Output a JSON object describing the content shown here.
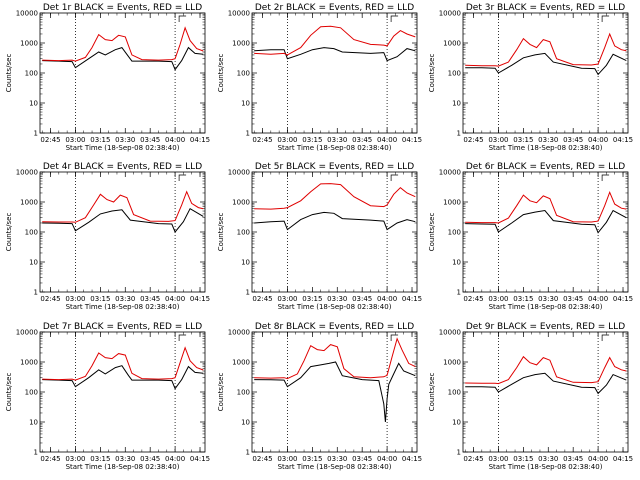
{
  "figure": {
    "xlabel": "Start Time (18-Sep-08 02:38:40)",
    "ylabel": "Counts/sec",
    "xtick_labels": [
      "02:45",
      "03:00",
      "03:15",
      "03:30",
      "03:45",
      "04:00",
      "04:15"
    ],
    "ytick_labels": [
      "1",
      "10",
      "100",
      "1000",
      "10000"
    ]
  },
  "chart_data": [
    {
      "type": "line",
      "title": "Det 1r BLACK = Events, RED = LLD",
      "xlabel": "Start Time (18-Sep-08 02:38:40)",
      "ylabel": "Counts/sec",
      "ylim": [
        1,
        10000
      ],
      "y_scale": "log",
      "x_ticks": [
        "02:45",
        "03:00",
        "03:15",
        "03:30",
        "03:45",
        "04:00",
        "04:15"
      ],
      "vertical_dotted_lines": [
        "03:00",
        "04:00"
      ],
      "series": [
        {
          "name": "Events",
          "color": "#000000",
          "x": [
            "02:40",
            "02:50",
            "02:58",
            "03:00",
            "03:08",
            "03:14",
            "03:18",
            "03:24",
            "03:28",
            "03:32",
            "03:34",
            "03:50",
            "03:58",
            "04:00",
            "04:04",
            "04:08",
            "04:12",
            "04:17"
          ],
          "y": [
            260,
            250,
            240,
            150,
            300,
            500,
            400,
            600,
            700,
            350,
            250,
            250,
            240,
            130,
            260,
            700,
            450,
            420
          ]
        },
        {
          "name": "LLD",
          "color": "#e00000",
          "x": [
            "02:40",
            "02:50",
            "02:58",
            "03:00",
            "03:06",
            "03:10",
            "03:14",
            "03:18",
            "03:22",
            "03:26",
            "03:30",
            "03:34",
            "03:40",
            "03:50",
            "03:58",
            "04:00",
            "04:03",
            "04:06",
            "04:09",
            "04:13",
            "04:17"
          ],
          "y": [
            270,
            260,
            270,
            250,
            330,
            700,
            1900,
            1300,
            1200,
            1800,
            1600,
            400,
            280,
            270,
            280,
            300,
            900,
            3200,
            1200,
            650,
            540
          ]
        }
      ]
    },
    {
      "type": "line",
      "title": "Det 2r BLACK = Events, RED = LLD",
      "xlabel": "Start Time (18-Sep-08 02:38:40)",
      "ylabel": "Counts/sec",
      "ylim": [
        1,
        10000
      ],
      "y_scale": "log",
      "x_ticks": [
        "02:45",
        "03:00",
        "03:15",
        "03:30",
        "03:45",
        "04:00",
        "04:15"
      ],
      "vertical_dotted_lines": [
        "03:00",
        "04:00"
      ],
      "series": [
        {
          "name": "Events",
          "color": "#000000",
          "x": [
            "02:40",
            "02:50",
            "02:58",
            "03:00",
            "03:08",
            "03:15",
            "03:22",
            "03:28",
            "03:33",
            "03:50",
            "03:58",
            "04:00",
            "04:06",
            "04:12",
            "04:17"
          ],
          "y": [
            550,
            600,
            600,
            300,
            420,
            600,
            700,
            650,
            500,
            450,
            480,
            260,
            350,
            650,
            550
          ]
        },
        {
          "name": "LLD",
          "color": "#e00000",
          "x": [
            "02:40",
            "02:50",
            "02:58",
            "03:00",
            "03:08",
            "03:14",
            "03:20",
            "03:26",
            "03:32",
            "03:40",
            "03:50",
            "03:58",
            "04:00",
            "04:04",
            "04:08",
            "04:12",
            "04:17"
          ],
          "y": [
            450,
            420,
            450,
            400,
            700,
            1800,
            3500,
            3600,
            3200,
            1300,
            900,
            850,
            800,
            1700,
            2600,
            2000,
            1600
          ]
        }
      ]
    },
    {
      "type": "line",
      "title": "Det 3r BLACK = Events, RED = LLD",
      "xlabel": "Start Time (18-Sep-08 02:38:40)",
      "ylabel": "Counts/sec",
      "ylim": [
        1,
        10000
      ],
      "y_scale": "log",
      "x_ticks": [
        "02:45",
        "03:00",
        "03:15",
        "03:30",
        "03:45",
        "04:00",
        "04:15"
      ],
      "vertical_dotted_lines": [
        "03:00",
        "04:00"
      ],
      "series": [
        {
          "name": "Events",
          "color": "#000000",
          "x": [
            "02:40",
            "02:50",
            "02:58",
            "03:00",
            "03:08",
            "03:15",
            "03:22",
            "03:28",
            "03:33",
            "03:50",
            "03:58",
            "04:00",
            "04:05",
            "04:09",
            "04:17"
          ],
          "y": [
            150,
            150,
            145,
            100,
            180,
            320,
            400,
            450,
            230,
            145,
            140,
            90,
            180,
            420,
            260
          ]
        },
        {
          "name": "LLD",
          "color": "#e00000",
          "x": [
            "02:40",
            "02:50",
            "02:58",
            "03:00",
            "03:06",
            "03:11",
            "03:15",
            "03:19",
            "03:23",
            "03:27",
            "03:31",
            "03:35",
            "03:45",
            "03:56",
            "04:00",
            "04:04",
            "04:07",
            "04:10",
            "04:14",
            "04:17"
          ],
          "y": [
            180,
            175,
            175,
            170,
            230,
            600,
            1400,
            900,
            700,
            1300,
            1100,
            300,
            190,
            185,
            200,
            700,
            2000,
            800,
            600,
            550
          ]
        }
      ]
    },
    {
      "type": "line",
      "title": "Det 4r BLACK = Events, RED = LLD",
      "xlabel": "Start Time (18-Sep-08 02:38:40)",
      "ylabel": "Counts/sec",
      "ylim": [
        1,
        10000
      ],
      "y_scale": "log",
      "x_ticks": [
        "02:45",
        "03:00",
        "03:15",
        "03:30",
        "03:45",
        "04:00",
        "04:15"
      ],
      "vertical_dotted_lines": [
        "03:00",
        "04:00"
      ],
      "series": [
        {
          "name": "Events",
          "color": "#000000",
          "x": [
            "02:40",
            "02:50",
            "02:58",
            "03:00",
            "03:08",
            "03:15",
            "03:22",
            "03:28",
            "03:33",
            "03:50",
            "03:58",
            "04:00",
            "04:05",
            "04:09",
            "04:17"
          ],
          "y": [
            200,
            195,
            190,
            110,
            210,
            400,
            500,
            550,
            250,
            190,
            185,
            100,
            220,
            600,
            330
          ]
        },
        {
          "name": "LLD",
          "color": "#e00000",
          "x": [
            "02:40",
            "02:50",
            "02:58",
            "03:00",
            "03:06",
            "03:11",
            "03:15",
            "03:19",
            "03:23",
            "03:27",
            "03:31",
            "03:35",
            "03:45",
            "03:56",
            "04:00",
            "04:04",
            "04:07",
            "04:10",
            "04:14",
            "04:17"
          ],
          "y": [
            220,
            215,
            215,
            210,
            300,
            800,
            1800,
            1200,
            1000,
            1700,
            1400,
            380,
            230,
            225,
            240,
            800,
            2200,
            900,
            650,
            600
          ]
        }
      ]
    },
    {
      "type": "line",
      "title": "Det 5r BLACK = Events, RED = LLD",
      "xlabel": "Start Time (18-Sep-08 02:38:40)",
      "ylabel": "Counts/sec",
      "ylim": [
        1,
        10000
      ],
      "y_scale": "log",
      "x_ticks": [
        "02:45",
        "03:00",
        "03:15",
        "03:30",
        "03:45",
        "04:00",
        "04:15"
      ],
      "vertical_dotted_lines": [
        "03:00",
        "04:00"
      ],
      "series": [
        {
          "name": "Events",
          "color": "#000000",
          "x": [
            "02:40",
            "02:50",
            "02:58",
            "03:00",
            "03:08",
            "03:15",
            "03:22",
            "03:28",
            "03:33",
            "03:50",
            "03:58",
            "04:00",
            "04:06",
            "04:12",
            "04:17"
          ],
          "y": [
            200,
            220,
            230,
            120,
            260,
            380,
            450,
            420,
            280,
            250,
            230,
            120,
            200,
            260,
            220
          ]
        },
        {
          "name": "LLD",
          "color": "#e00000",
          "x": [
            "02:40",
            "02:50",
            "02:58",
            "03:00",
            "03:08",
            "03:14",
            "03:20",
            "03:26",
            "03:32",
            "03:40",
            "03:50",
            "03:58",
            "04:00",
            "04:04",
            "04:08",
            "04:12",
            "04:17"
          ],
          "y": [
            600,
            580,
            620,
            650,
            1100,
            2200,
            4000,
            4100,
            3800,
            1500,
            750,
            700,
            800,
            1800,
            3000,
            2000,
            1500
          ]
        }
      ]
    },
    {
      "type": "line",
      "title": "Det 6r BLACK = Events, RED = LLD",
      "xlabel": "Start Time (18-Sep-08 02:38:40)",
      "ylabel": "Counts/sec",
      "ylim": [
        1,
        10000
      ],
      "y_scale": "log",
      "x_ticks": [
        "02:45",
        "03:00",
        "03:15",
        "03:30",
        "03:45",
        "04:00",
        "04:15"
      ],
      "vertical_dotted_lines": [
        "03:00",
        "04:00"
      ],
      "series": [
        {
          "name": "Events",
          "color": "#000000",
          "x": [
            "02:40",
            "02:50",
            "02:58",
            "03:00",
            "03:08",
            "03:15",
            "03:22",
            "03:28",
            "03:33",
            "03:50",
            "03:58",
            "04:00",
            "04:05",
            "04:09",
            "04:17"
          ],
          "y": [
            190,
            185,
            180,
            100,
            200,
            380,
            460,
            520,
            240,
            180,
            175,
            95,
            210,
            520,
            300
          ]
        },
        {
          "name": "LLD",
          "color": "#e00000",
          "x": [
            "02:40",
            "02:50",
            "02:58",
            "03:00",
            "03:06",
            "03:11",
            "03:15",
            "03:19",
            "03:23",
            "03:27",
            "03:31",
            "03:35",
            "03:45",
            "03:56",
            "04:00",
            "04:04",
            "04:07",
            "04:10",
            "04:14",
            "04:17"
          ],
          "y": [
            210,
            205,
            205,
            200,
            290,
            750,
            1700,
            1100,
            950,
            1600,
            1300,
            360,
            220,
            215,
            230,
            750,
            2100,
            850,
            620,
            580
          ]
        }
      ]
    },
    {
      "type": "line",
      "title": "Det 7r BLACK = Events, RED = LLD",
      "xlabel": "Start Time (18-Sep-08 02:38:40)",
      "ylabel": "Counts/sec",
      "ylim": [
        1,
        10000
      ],
      "y_scale": "log",
      "x_ticks": [
        "02:45",
        "03:00",
        "03:15",
        "03:30",
        "03:45",
        "04:00",
        "04:15"
      ],
      "vertical_dotted_lines": [
        "03:00",
        "04:00"
      ],
      "series": [
        {
          "name": "Events",
          "color": "#000000",
          "x": [
            "02:40",
            "02:50",
            "02:58",
            "03:00",
            "03:08",
            "03:14",
            "03:18",
            "03:24",
            "03:28",
            "03:32",
            "03:34",
            "03:50",
            "03:58",
            "04:00",
            "04:04",
            "04:08",
            "04:12",
            "04:17"
          ],
          "y": [
            260,
            250,
            240,
            150,
            300,
            550,
            400,
            650,
            750,
            350,
            250,
            250,
            240,
            130,
            260,
            700,
            450,
            420
          ]
        },
        {
          "name": "LLD",
          "color": "#e00000",
          "x": [
            "02:40",
            "02:50",
            "02:58",
            "03:00",
            "03:06",
            "03:10",
            "03:14",
            "03:18",
            "03:22",
            "03:26",
            "03:30",
            "03:34",
            "03:40",
            "03:50",
            "03:58",
            "04:00",
            "04:03",
            "04:06",
            "04:09",
            "04:13",
            "04:17"
          ],
          "y": [
            270,
            260,
            270,
            250,
            330,
            750,
            2000,
            1400,
            1300,
            1900,
            1700,
            420,
            280,
            270,
            280,
            300,
            950,
            3000,
            1100,
            650,
            540
          ]
        }
      ]
    },
    {
      "type": "line",
      "title": "Det 8r BLACK = Events, RED = LLD",
      "xlabel": "Start Time (18-Sep-08 02:38:40)",
      "ylabel": "Counts/sec",
      "ylim": [
        1,
        10000
      ],
      "y_scale": "log",
      "x_ticks": [
        "02:45",
        "03:00",
        "03:15",
        "03:30",
        "03:45",
        "04:00",
        "04:15"
      ],
      "vertical_dotted_lines": [
        "03:00",
        "04:00"
      ],
      "series": [
        {
          "name": "Events",
          "color": "#000000",
          "x": [
            "02:40",
            "02:50",
            "02:58",
            "03:00",
            "03:08",
            "03:14",
            "03:20",
            "03:25",
            "03:29",
            "03:33",
            "03:45",
            "03:55",
            "03:58",
            "03:59",
            "04:00",
            "04:01",
            "04:04",
            "04:07",
            "04:10",
            "04:17"
          ],
          "y": [
            260,
            255,
            250,
            150,
            300,
            700,
            800,
            900,
            1000,
            350,
            260,
            240,
            40,
            10,
            60,
            180,
            400,
            900,
            500,
            350
          ]
        },
        {
          "name": "LLD",
          "color": "#e00000",
          "x": [
            "02:40",
            "02:50",
            "02:58",
            "03:00",
            "03:06",
            "03:10",
            "03:14",
            "03:18",
            "03:22",
            "03:26",
            "03:30",
            "03:34",
            "03:40",
            "03:50",
            "03:58",
            "04:00",
            "04:03",
            "04:06",
            "04:09",
            "04:13",
            "04:17"
          ],
          "y": [
            300,
            290,
            300,
            280,
            400,
            1100,
            3500,
            2600,
            2400,
            3800,
            3200,
            600,
            320,
            300,
            320,
            360,
            1500,
            6000,
            2500,
            900,
            700
          ]
        }
      ]
    },
    {
      "type": "line",
      "title": "Det 9r BLACK = Events, RED = LLD",
      "xlabel": "Start Time (18-Sep-08 02:38:40)",
      "ylabel": "Counts/sec",
      "ylim": [
        1,
        10000
      ],
      "y_scale": "log",
      "x_ticks": [
        "02:45",
        "03:00",
        "03:15",
        "03:30",
        "03:45",
        "04:00",
        "04:15"
      ],
      "vertical_dotted_lines": [
        "03:00",
        "04:00"
      ],
      "series": [
        {
          "name": "Events",
          "color": "#000000",
          "x": [
            "02:40",
            "02:50",
            "02:58",
            "03:00",
            "03:08",
            "03:15",
            "03:22",
            "03:28",
            "03:33",
            "03:50",
            "03:58",
            "04:00",
            "04:05",
            "04:09",
            "04:17"
          ],
          "y": [
            150,
            150,
            145,
            100,
            180,
            300,
            380,
            420,
            230,
            145,
            140,
            90,
            170,
            380,
            250
          ]
        },
        {
          "name": "LLD",
          "color": "#e00000",
          "x": [
            "02:40",
            "02:50",
            "02:58",
            "03:00",
            "03:06",
            "03:11",
            "03:15",
            "03:19",
            "03:23",
            "03:27",
            "03:31",
            "03:35",
            "03:45",
            "03:56",
            "04:00",
            "04:04",
            "04:07",
            "04:10",
            "04:14",
            "04:17"
          ],
          "y": [
            200,
            195,
            195,
            190,
            260,
            650,
            1500,
            950,
            800,
            1400,
            1150,
            320,
            210,
            205,
            220,
            650,
            1400,
            700,
            550,
            500
          ]
        }
      ]
    }
  ]
}
